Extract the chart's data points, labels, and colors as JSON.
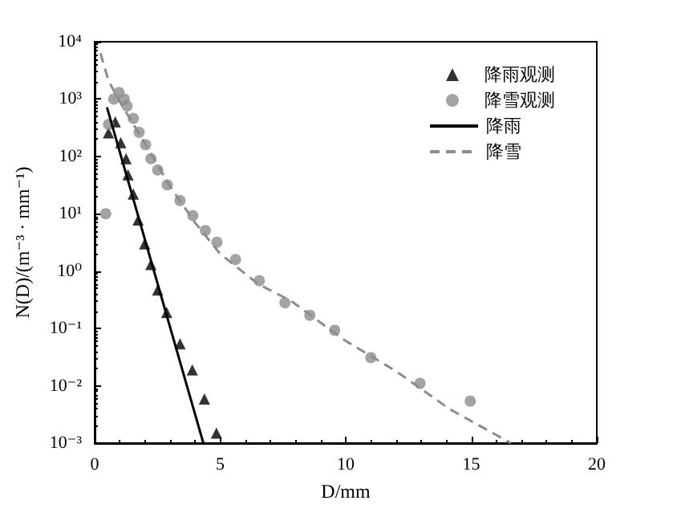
{
  "chart_data": {
    "type": "scatter",
    "xlabel": "D/mm",
    "ylabel": "N(D)/(m⁻³ · mm⁻¹)",
    "xlim": [
      0,
      20
    ],
    "xticks": [
      0,
      5,
      10,
      15,
      20
    ],
    "ylim": [
      0.001,
      10000
    ],
    "yticks": [
      {
        "value": 0.001,
        "label": "10⁻³"
      },
      {
        "value": 0.01,
        "label": "10⁻²"
      },
      {
        "value": 0.1,
        "label": "10⁻¹"
      },
      {
        "value": 1,
        "label": "10⁰"
      },
      {
        "value": 10,
        "label": "10¹"
      },
      {
        "value": 100,
        "label": "10²"
      },
      {
        "value": 1000,
        "label": "10³"
      },
      {
        "value": 10000,
        "label": "10⁴"
      }
    ],
    "log": "y",
    "grid": false,
    "legend": "top right",
    "series": [
      {
        "name": "降雨观测",
        "type": "scatter",
        "marker": "triangle",
        "color": "#000000",
        "x": [
          0.55,
          0.82,
          1.04,
          1.25,
          1.33,
          1.54,
          1.73,
          1.99,
          2.24,
          2.51,
          2.87,
          3.4,
          3.89,
          4.37,
          4.85
        ],
        "values": [
          257,
          400,
          174,
          91,
          48,
          22,
          7.8,
          3,
          1.3,
          0.47,
          0.19,
          0.054,
          0.019,
          0.0059,
          0.0015
        ]
      },
      {
        "name": "降雪观测",
        "type": "scatter",
        "marker": "circle",
        "color": "#8c8c8c",
        "x": [
          0.44,
          0.55,
          0.76,
          0.97,
          1.18,
          1.29,
          1.54,
          1.77,
          2.03,
          2.24,
          2.51,
          2.89,
          3.4,
          3.91,
          4.41,
          4.87,
          5.61,
          6.56,
          7.58,
          8.57,
          9.56,
          11.0,
          12.96,
          14.96
        ],
        "values": [
          10,
          360,
          1000,
          1300,
          1000,
          760,
          460,
          263,
          160,
          91,
          58,
          32,
          17,
          9.3,
          5.1,
          3.2,
          1.6,
          0.68,
          0.28,
          0.17,
          0.093,
          0.031,
          0.011,
          0.0054
        ]
      },
      {
        "name": "降雨",
        "type": "line",
        "marker": "none",
        "line_style": "solid",
        "color": "#000000",
        "x": [
          0.49,
          4.33
        ],
        "values": [
          720,
          0.001
        ]
      },
      {
        "name": "降雪",
        "type": "line",
        "marker": "none",
        "line_style": "dashed",
        "color": "#8c8c8c",
        "x": [
          0.23,
          0.55,
          1.0,
          2.0,
          3.0,
          4.0,
          5.0,
          6.5,
          7.83,
          9.94,
          12.0,
          14.15,
          16.58
        ],
        "values": [
          6300,
          2100,
          900,
          170,
          30,
          7,
          2,
          0.6,
          0.3,
          0.063,
          0.018,
          0.0039,
          0.001
        ]
      }
    ]
  }
}
